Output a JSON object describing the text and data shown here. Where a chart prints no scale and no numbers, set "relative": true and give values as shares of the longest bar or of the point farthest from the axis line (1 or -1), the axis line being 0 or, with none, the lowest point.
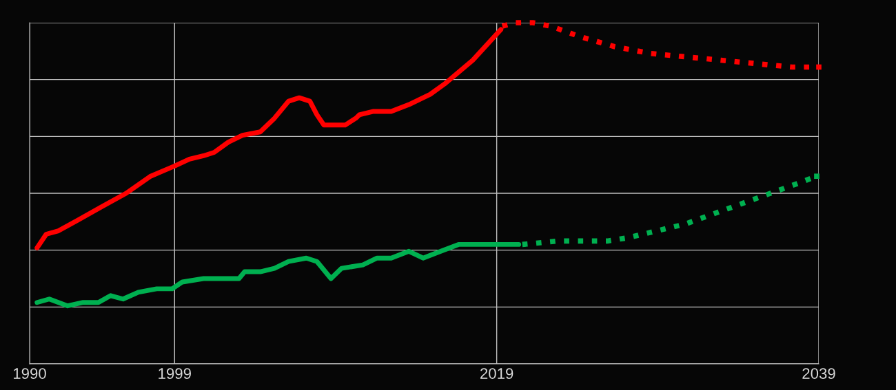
{
  "chart_data": {
    "type": "line",
    "relative": true,
    "grid": true,
    "tick_labels": "x",
    "legend": false,
    "xlim": [
      1990,
      2039
    ],
    "xticks": [
      1990,
      1999,
      2019,
      2039
    ],
    "series": [
      {
        "color": "#ff0000",
        "line_style": "solid",
        "x": [
          1990.46,
          1991.03,
          1991.79,
          1992.94,
          1994.46,
          1995.99,
          1997.51,
          1999.0,
          1999.92,
          2000.8,
          2001.46,
          2002.34,
          2003.22,
          2004.32,
          2005.2,
          2006.08,
          2006.74,
          2007.4,
          2007.84,
          2008.27,
          2008.93,
          2009.59,
          2010.25,
          2010.47,
          2011.35,
          2012.45,
          2013.55,
          2014.87,
          2015.75,
          2017.51,
          2019.26
        ],
        "values": [
          0.34,
          0.38,
          0.39,
          0.42,
          0.46,
          0.5,
          0.55,
          0.58,
          0.6,
          0.61,
          0.62,
          0.65,
          0.67,
          0.68,
          0.72,
          0.77,
          0.78,
          0.77,
          0.73,
          0.7,
          0.7,
          0.7,
          0.72,
          0.73,
          0.74,
          0.74,
          0.76,
          0.79,
          0.82,
          0.89,
          0.98
        ]
      },
      {
        "color": "#ff0000",
        "line_style": "dotted",
        "x": [
          2019.35,
          2020.15,
          2021.25,
          2022.35,
          2024.11,
          2026.31,
          2028.52,
          2030.72,
          2032.92,
          2035.12,
          2037.33,
          2039.0
        ],
        "values": [
          0.99,
          1.0,
          1.0,
          0.99,
          0.96,
          0.93,
          0.91,
          0.9,
          0.89,
          0.88,
          0.87,
          0.87
        ]
      },
      {
        "color": "#00b050",
        "line_style": "solid",
        "x": [
          1990.46,
          1991.22,
          1991.79,
          1992.36,
          1993.32,
          1994.27,
          1995.03,
          1995.8,
          1996.75,
          1997.89,
          1998.85,
          1999.48,
          2000.8,
          2003.0,
          2003.35,
          2004.32,
          2005.2,
          2006.08,
          2007.18,
          2007.84,
          2008.71,
          2009.37,
          2010.69,
          2011.57,
          2012.45,
          2013.55,
          2014.43,
          2015.53,
          2016.63,
          2017.51,
          2018.82,
          2020.37
        ],
        "values": [
          0.18,
          0.19,
          0.18,
          0.17,
          0.18,
          0.18,
          0.2,
          0.19,
          0.21,
          0.22,
          0.22,
          0.24,
          0.25,
          0.25,
          0.27,
          0.27,
          0.28,
          0.3,
          0.31,
          0.3,
          0.25,
          0.28,
          0.29,
          0.31,
          0.31,
          0.33,
          0.31,
          0.33,
          0.35,
          0.35,
          0.35,
          0.35
        ]
      },
      {
        "color": "#00b050",
        "line_style": "dotted",
        "x": [
          2020.59,
          2022.79,
          2025.87,
          2027.19,
          2028.96,
          2030.72,
          2032.48,
          2034.24,
          2036.0,
          2037.76,
          2038.87
        ],
        "values": [
          0.35,
          0.36,
          0.36,
          0.37,
          0.39,
          0.41,
          0.44,
          0.47,
          0.5,
          0.53,
          0.55
        ]
      }
    ]
  }
}
